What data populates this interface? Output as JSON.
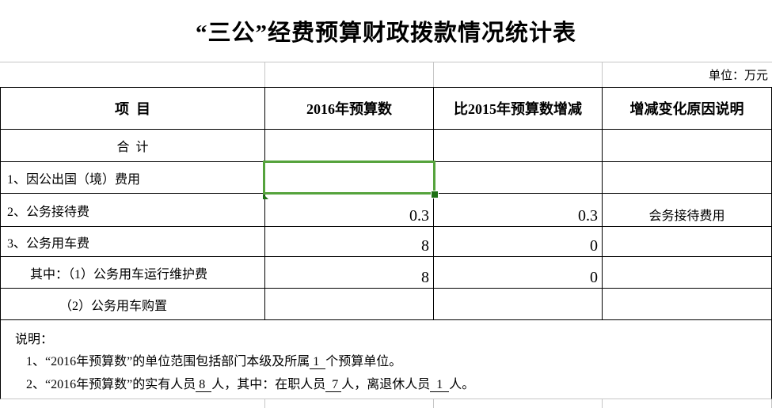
{
  "title": "“三公”经费预算财政拨款情况统计表",
  "unit_label": "单位：万元",
  "colors": {
    "selection_green": "#55a33c",
    "fill_handle_green": "#1f7215",
    "gridline_gray": "#c6c6c6",
    "border_black": "#000000"
  },
  "table": {
    "headers": [
      "项  目",
      "2016年预算数",
      "比2015年预算数增减",
      "增减变化原因说明"
    ],
    "rows": [
      {
        "item": "合  计",
        "y2016": "",
        "change": "",
        "reason": ""
      },
      {
        "item": "1、因公出国（境）费用",
        "y2016": "",
        "change": "",
        "reason": ""
      },
      {
        "item": "2、公务接待费",
        "y2016": "0.3",
        "change": "0.3",
        "reason": "会务接待费用"
      },
      {
        "item": "3、公务用车费",
        "y2016": "8",
        "change": "0",
        "reason": ""
      },
      {
        "item": "其中：（1）公务用车运行维护费",
        "y2016": "8",
        "change": "0",
        "reason": ""
      },
      {
        "item": "（2）公务用车购置",
        "y2016": "",
        "change": "",
        "reason": ""
      }
    ]
  },
  "notes": {
    "heading": "说明：",
    "line1": {
      "a": "1、“2016年预算数”的单位范围包括部门本级及所属",
      "b": " 1  ",
      "c": "个预算单位。"
    },
    "line2": {
      "a": "2、“2016年预算数”的实有人员",
      "b": " 8  ",
      "c": "人，其中：在职人员",
      "d": "  7 ",
      "e": "人，离退休人员",
      "f": "  1  ",
      "g": "人。"
    }
  }
}
